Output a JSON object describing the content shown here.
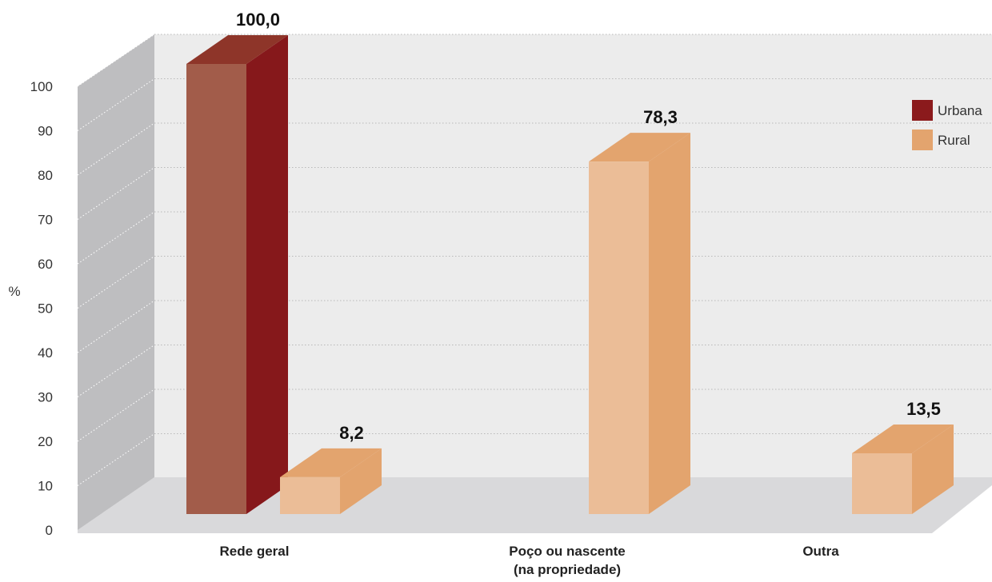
{
  "chart_data": {
    "type": "bar",
    "categories": [
      [
        "Rede geral"
      ],
      [
        "Poço ou nascente",
        "(na propriedade)"
      ],
      [
        "Outra"
      ]
    ],
    "series": [
      {
        "name": "Urbana",
        "values": [
          100.0,
          null,
          null
        ],
        "labels": [
          "100,0",
          "",
          ""
        ],
        "color": "#8B1A1C"
      },
      {
        "name": "Rural",
        "values": [
          8.2,
          78.3,
          13.5
        ],
        "labels": [
          "8,2",
          "78,3",
          "13,5"
        ],
        "color": "#E3A46E"
      }
    ],
    "ylabel": "%",
    "ylim": [
      0,
      100
    ],
    "yticks": [
      "0",
      "10",
      "20",
      "30",
      "40",
      "50",
      "60",
      "70",
      "80",
      "90",
      "100"
    ],
    "grid": true,
    "legend_position": "top-right",
    "style": "3d"
  }
}
